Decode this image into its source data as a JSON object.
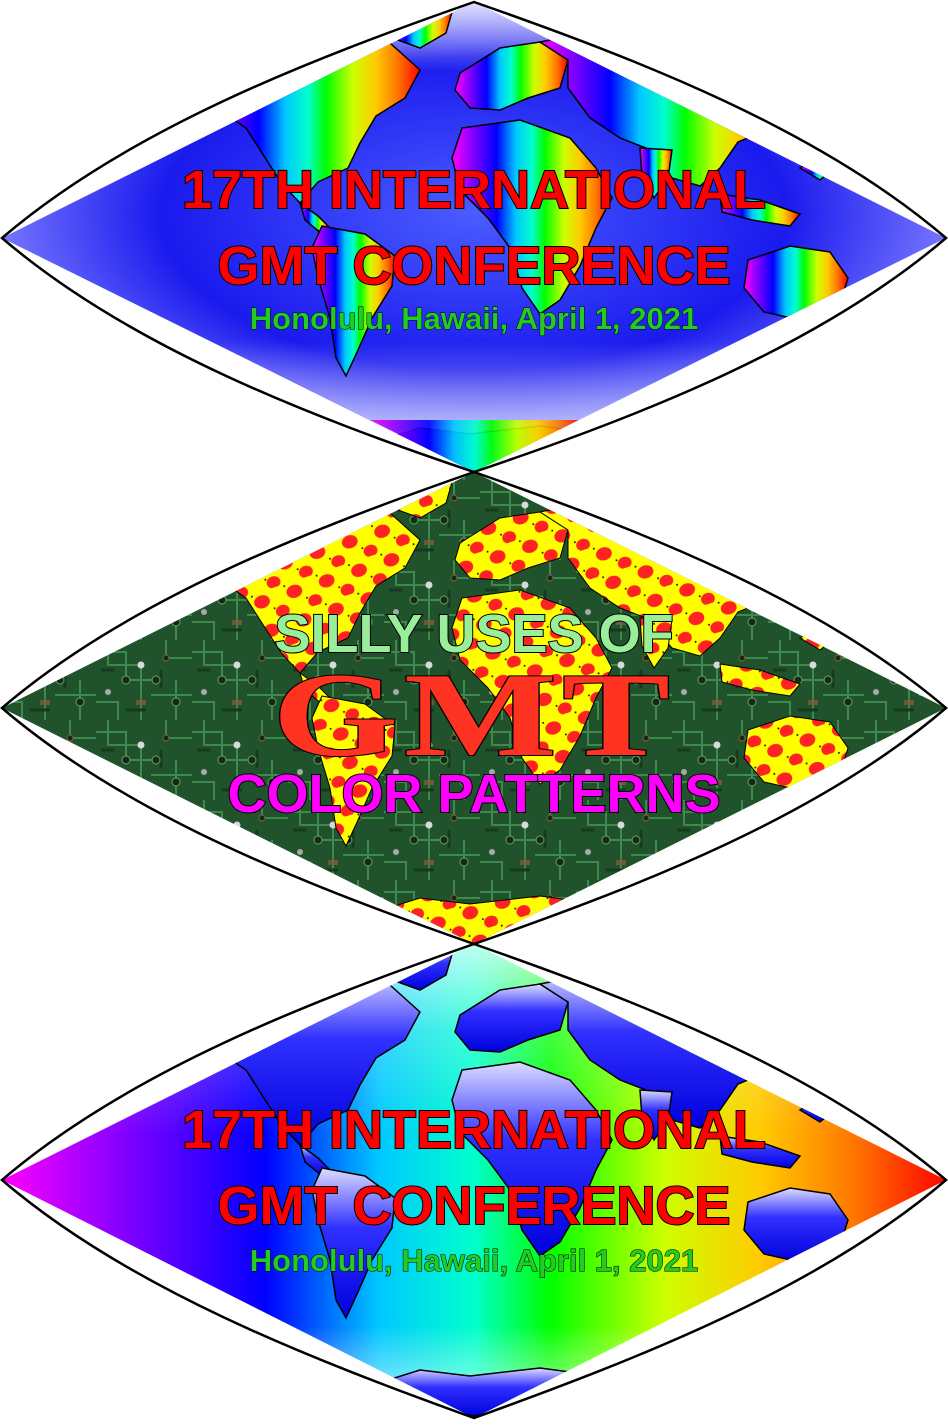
{
  "colors": {
    "conference_title": "#ff0000",
    "conference_sub": "#22cc22",
    "silly": "#99ee99",
    "gmt_logo": "#ff3322",
    "patterns": "#ff00ff",
    "polka_base": "#ffff00",
    "polka_dot": "#ff2222",
    "circuit_bg": "#1c4a26"
  },
  "panels": {
    "top": {
      "line1": "17TH INTERNATIONAL",
      "line2": "GMT CONFERENCE",
      "line3": "Honolulu, Hawaii, April 1, 2021"
    },
    "middle": {
      "line1": "SILLY USES OF",
      "logo": "GMT",
      "line3": "COLOR PATTERNS"
    },
    "bottom": {
      "line1": "17TH INTERNATIONAL",
      "line2": "GMT CONFERENCE",
      "line3": "Honolulu, Hawaii, April 1, 2021"
    }
  }
}
